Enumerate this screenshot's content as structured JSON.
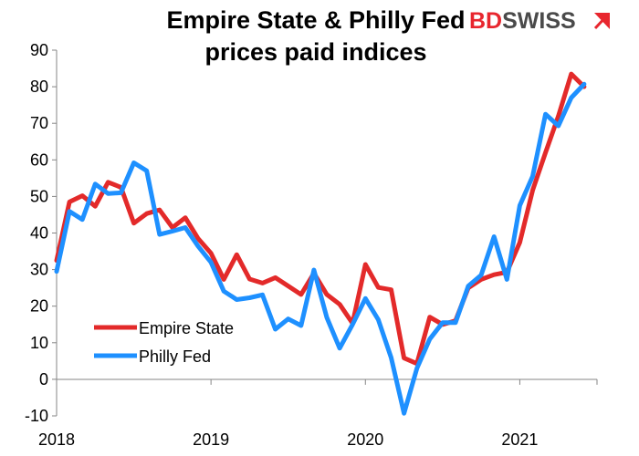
{
  "brand": {
    "text_red": "BD",
    "text_dark": "SWISS",
    "color_red": "#E8262E",
    "color_dark": "#4A4A4A",
    "icon": "upward-arrow-icon"
  },
  "chart_data": {
    "type": "line",
    "title_lines": [
      "Empire State & Philly Fed",
      "prices paid indices"
    ],
    "xlabel": "",
    "ylabel": "",
    "ylim": [
      -10,
      90
    ],
    "yticks": [
      -10,
      0,
      10,
      20,
      30,
      40,
      50,
      60,
      70,
      80,
      90
    ],
    "xlim": [
      "2018-01",
      "2021-07"
    ],
    "xticks": [
      "2018",
      "2019",
      "2020",
      "2021"
    ],
    "grid": false,
    "legend_position": "bottom-left",
    "x": [
      "2018-01",
      "2018-02",
      "2018-03",
      "2018-04",
      "2018-05",
      "2018-06",
      "2018-07",
      "2018-08",
      "2018-09",
      "2018-10",
      "2018-11",
      "2018-12",
      "2019-01",
      "2019-02",
      "2019-03",
      "2019-04",
      "2019-05",
      "2019-06",
      "2019-07",
      "2019-08",
      "2019-09",
      "2019-10",
      "2019-11",
      "2019-12",
      "2020-01",
      "2020-02",
      "2020-03",
      "2020-04",
      "2020-05",
      "2020-06",
      "2020-07",
      "2020-08",
      "2020-09",
      "2020-10",
      "2020-11",
      "2020-12",
      "2021-01",
      "2021-02",
      "2021-03",
      "2021-04",
      "2021-05",
      "2021-06"
    ],
    "series": [
      {
        "name": "Empire State",
        "color": "#E32A2A",
        "values": [
          32.5,
          48.5,
          50.2,
          47.3,
          53.9,
          52.5,
          42.7,
          45.3,
          46.3,
          41.5,
          44.2,
          38.5,
          34.5,
          27.3,
          34.1,
          27.4,
          26.3,
          27.8,
          25.5,
          23.2,
          29.0,
          23.2,
          20.5,
          15.3,
          31.4,
          25.1,
          24.5,
          5.8,
          4.3,
          17.0,
          15.0,
          16.0,
          25.0,
          27.3,
          28.6,
          29.3,
          37.4,
          51.7,
          62.0,
          72.0,
          83.5,
          80.0
        ]
      },
      {
        "name": "Philly Fed",
        "color": "#1E90FF",
        "values": [
          29.5,
          45.9,
          43.7,
          53.4,
          50.8,
          51.0,
          59.2,
          57.0,
          39.6,
          40.5,
          41.5,
          36.4,
          32.0,
          24.1,
          21.8,
          22.3,
          23.1,
          13.7,
          16.5,
          14.7,
          29.9,
          16.9,
          8.5,
          15.0,
          22.1,
          16.3,
          5.9,
          -9.3,
          3.0,
          11.0,
          15.5,
          15.5,
          25.5,
          28.5,
          39.0,
          27.3,
          47.5,
          55.5,
          72.5,
          69.3,
          77.0,
          80.7
        ]
      }
    ]
  }
}
